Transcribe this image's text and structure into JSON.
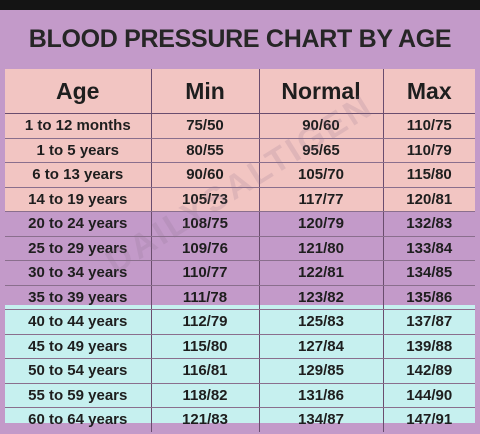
{
  "title": "BLOOD PRESSURE CHART BY AGE",
  "colors": {
    "pink": "#f2c5c2",
    "purple": "#c39ac9",
    "cyan": "#c6f0ef",
    "text": "#1e1e1e"
  },
  "watermark": "DAILYSALTIGEN",
  "chart_data": {
    "type": "table",
    "title": "BLOOD PRESSURE CHART BY AGE",
    "columns": [
      "Age",
      "Min",
      "Normal",
      "Max"
    ],
    "rows": [
      {
        "age": "1 to 12 months",
        "min": "75/50",
        "normal": "90/60",
        "max": "110/75"
      },
      {
        "age": "1 to 5 years",
        "min": "80/55",
        "normal": "95/65",
        "max": "110/79"
      },
      {
        "age": "6 to 13 years",
        "min": "90/60",
        "normal": "105/70",
        "max": "115/80"
      },
      {
        "age": "14 to 19 years",
        "min": "105/73",
        "normal": "117/77",
        "max": "120/81"
      },
      {
        "age": "20 to 24 years",
        "min": "108/75",
        "normal": "120/79",
        "max": "132/83"
      },
      {
        "age": "25 to 29 years",
        "min": "109/76",
        "normal": "121/80",
        "max": "133/84"
      },
      {
        "age": "30 to 34 years",
        "min": "110/77",
        "normal": "122/81",
        "max": "134/85"
      },
      {
        "age": "35 to 39 years",
        "min": "111/78",
        "normal": "123/82",
        "max": "135/86"
      },
      {
        "age": "40 to 44 years",
        "min": "112/79",
        "normal": "125/83",
        "max": "137/87"
      },
      {
        "age": "45 to 49 years",
        "min": "115/80",
        "normal": "127/84",
        "max": "139/88"
      },
      {
        "age": "50 to 54 years",
        "min": "116/81",
        "normal": "129/85",
        "max": "142/89"
      },
      {
        "age": "55 to 59 years",
        "min": "118/82",
        "normal": "131/86",
        "max": "144/90"
      },
      {
        "age": "60 to 64 years",
        "min": "121/83",
        "normal": "134/87",
        "max": "147/91"
      }
    ]
  }
}
